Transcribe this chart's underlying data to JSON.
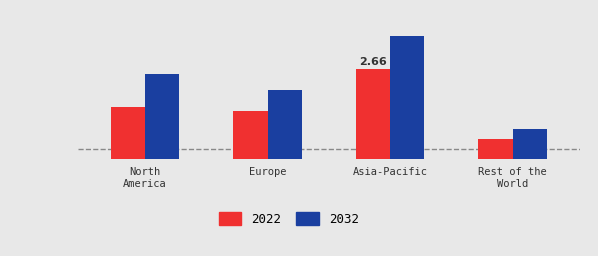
{
  "categories": [
    "North\nAmerica",
    "Europe",
    "Asia-Pacific",
    "Rest of the\nWorld"
  ],
  "values_2022": [
    1.55,
    1.42,
    2.66,
    0.58
  ],
  "values_2032": [
    2.52,
    2.05,
    3.65,
    0.88
  ],
  "color_2022": "#f03030",
  "color_2032": "#1a3fa0",
  "legend_2022": "2022",
  "legend_2032": "2032",
  "annotation_value": "2.66",
  "annotation_category_index": 2,
  "dashed_line_y": 0.3,
  "background_color": "#e8e8e8",
  "ylim": [
    0,
    4.5
  ],
  "bar_width": 0.28,
  "tick_label_color": "#333333",
  "ylabel_color": "#333333"
}
